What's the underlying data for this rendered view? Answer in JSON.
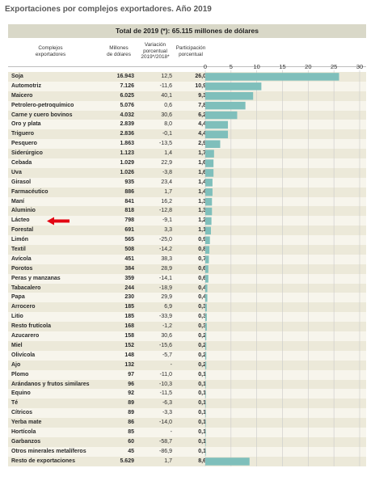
{
  "title": "Exportaciones por complejos exportadores.  Año 2019",
  "total_label": "Total de 2019 (*): 65.115 millones de dólares",
  "headers": {
    "complejos": "Complejos\nexportadores",
    "millones": "Millones\nde dólares",
    "variacion": "Variación\nporcentual\n2019*/2018*",
    "participacion": "Participación\nporcentual"
  },
  "colors": {
    "bar": "#7fbfbb",
    "arrow": "#e30613",
    "row_odd": "#ece9d9",
    "row_even": "#f7f5ec",
    "total_band": "#d9d8c8"
  },
  "chart_data": {
    "type": "bar",
    "orientation": "horizontal",
    "title": "Exportaciones por complejos exportadores.  Año 2019",
    "xlim": [
      0,
      30
    ],
    "xticks": [
      0,
      5,
      10,
      15,
      20,
      25,
      30
    ],
    "grid": true,
    "categories": [
      "Soja",
      "Automotriz",
      "Maicero",
      "Petrolero-petroquímico",
      "Carne y cuero bovinos",
      "Oro y plata",
      "Triguero",
      "Pesquero",
      "Siderúrgico",
      "Cebada",
      "Uva",
      "Girasol",
      "Farmacéutico",
      "Maní",
      "Aluminio",
      "Lácteo",
      "Forestal",
      "Limón",
      "Textil",
      "Avícola",
      "Porotos",
      "Peras y manzanas",
      "Tabacalero",
      "Papa",
      "Arrocero",
      "Litio",
      "Resto frutícola",
      "Azucarero",
      "Miel",
      "Olivícola",
      "Ajo",
      "Plomo",
      "Arándanos y frutos similares",
      "Equino",
      "Té",
      "Cítricos",
      "Yerba mate",
      "Hortícola",
      "Garbanzos",
      "Otros minerales metalíferos",
      "Resto de exportaciones"
    ],
    "millones": [
      "16.943",
      "7.126",
      "6.025",
      "5.076",
      "4.032",
      "2.839",
      "2.836",
      "1.863",
      "1.123",
      "1.029",
      "1.026",
      "935",
      "886",
      "841",
      "818",
      "798",
      "691",
      "565",
      "508",
      "451",
      "384",
      "359",
      "244",
      "230",
      "185",
      "185",
      "168",
      "158",
      "152",
      "148",
      "132",
      "97",
      "96",
      "92",
      "89",
      "89",
      "86",
      "85",
      "60",
      "45",
      "5.629"
    ],
    "variacion": [
      "12,5",
      "-11,6",
      "40,1",
      "0,6",
      "30,6",
      "8,0",
      "-0,1",
      "-13,5",
      "1,4",
      "22,9",
      "-3,8",
      "23,4",
      "1,7",
      "16,2",
      "-12,8",
      "-9,1",
      "3,3",
      "-25,0",
      "-14,2",
      "38,3",
      "28,9",
      "-14,1",
      "-18,9",
      "29,9",
      "6,9",
      "-33,9",
      "-1,2",
      "30,6",
      "-15,6",
      "-5,7",
      "-",
      "-11,0",
      "-10,3",
      "-11,5",
      "-6,3",
      "-3,3",
      "-14,0",
      "-",
      "-58,7",
      "-86,9",
      "1,7"
    ],
    "participacion": [
      "26,0",
      "10,9",
      "9,3",
      "7,8",
      "6,2",
      "4,4",
      "4,4",
      "2,9",
      "1,7",
      "1,6",
      "1,6",
      "1,4",
      "1,4",
      "1,3",
      "1,3",
      "1,2",
      "1,1",
      "0,9",
      "0,8",
      "0,7",
      "0,6",
      "0,6",
      "0,4",
      "0,4",
      "0,3",
      "0,3",
      "0,3",
      "0,2",
      "0,2",
      "0,2",
      "0,2",
      "0,1",
      "0,1",
      "0,1",
      "0,1",
      "0,1",
      "0,1",
      "0,1",
      "0,1",
      "0,1",
      "8,6"
    ],
    "values": [
      26.0,
      10.9,
      9.3,
      7.8,
      6.2,
      4.4,
      4.4,
      2.9,
      1.7,
      1.6,
      1.6,
      1.4,
      1.4,
      1.3,
      1.3,
      1.2,
      1.1,
      0.9,
      0.8,
      0.7,
      0.6,
      0.6,
      0.4,
      0.4,
      0.3,
      0.3,
      0.3,
      0.2,
      0.2,
      0.2,
      0.2,
      0.1,
      0.1,
      0.1,
      0.1,
      0.1,
      0.1,
      0.1,
      0.1,
      0.1,
      8.6
    ],
    "highlight": "Lácteo"
  }
}
